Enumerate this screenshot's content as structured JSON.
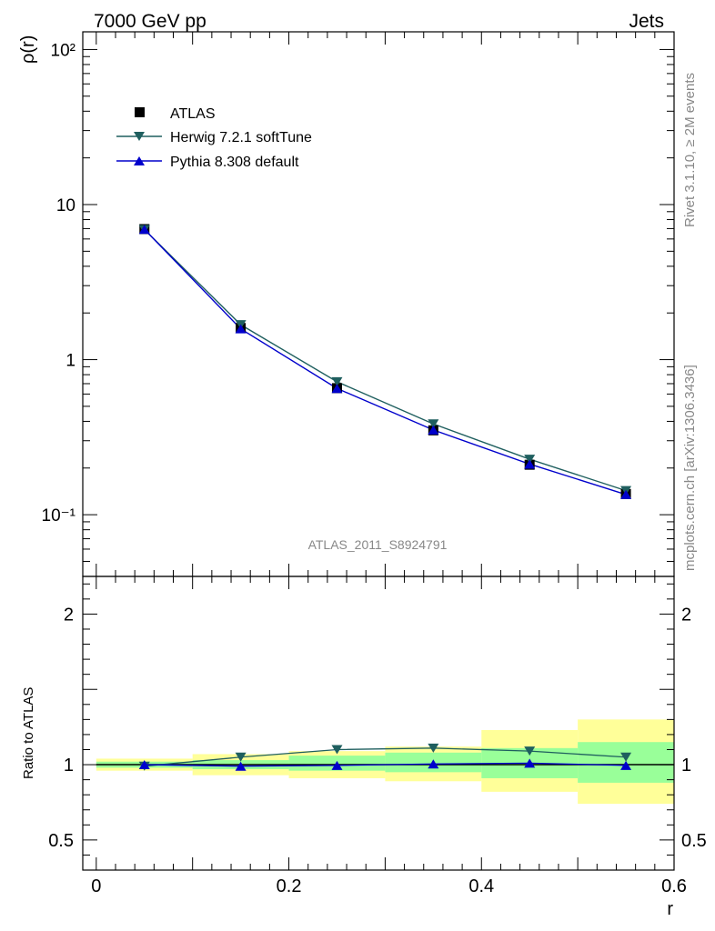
{
  "header": {
    "process": "7000 GeV pp",
    "category": "Jets"
  },
  "side_labels": {
    "rivet": "Rivet 3.1.10, ≥ 2M events",
    "source": "mcplots.cern.ch [arXiv:1306.3436]"
  },
  "analysis_label": "ATLAS_2011_S8924791",
  "colors": {
    "data": "#000000",
    "herwig": "#1f5f5f",
    "pythia": "#0000cc",
    "band_inner": "#99ff99",
    "band_outer": "#ffff99"
  },
  "chart_data": [
    {
      "type": "line",
      "panel": "main",
      "ylabel": "ρ(r)",
      "xlabel": "",
      "yscale": "log",
      "ylim": [
        0.04,
        130
      ],
      "xlim": [
        -0.014,
        0.6
      ],
      "y_tick_labels": [
        "10⁻¹",
        "1",
        "10",
        "10²"
      ],
      "x": [
        0.05,
        0.15,
        0.25,
        0.35,
        0.45,
        0.55
      ],
      "x_bin_edges": [
        0.0,
        0.1,
        0.2,
        0.3,
        0.4,
        0.5,
        0.6
      ],
      "series": [
        {
          "name": "ATLAS",
          "marker": "square",
          "values": [
            6.95,
            1.6,
            0.655,
            0.35,
            0.21,
            0.136
          ]
        },
        {
          "name": "Herwig 7.2.1 softTune",
          "marker": "triangle-down",
          "values": [
            6.9,
            1.68,
            0.72,
            0.385,
            0.228,
            0.143
          ]
        },
        {
          "name": "Pythia 8.308 default",
          "marker": "triangle-up",
          "values": [
            6.92,
            1.58,
            0.652,
            0.352,
            0.212,
            0.135
          ]
        }
      ],
      "legend_position": "top-left"
    },
    {
      "type": "line",
      "panel": "ratio",
      "ylabel": "Ratio to ATLAS",
      "xlabel": "r",
      "ylim": [
        0.3,
        2.25
      ],
      "xlim": [
        -0.014,
        0.6
      ],
      "y_tick_labels": [
        "0.5",
        "1",
        "2"
      ],
      "x_tick_labels": [
        "0",
        "0.2",
        "0.4",
        "0.6"
      ],
      "x": [
        0.05,
        0.15,
        0.25,
        0.35,
        0.45,
        0.55
      ],
      "x_bin_edges": [
        0.0,
        0.1,
        0.2,
        0.3,
        0.4,
        0.5,
        0.6
      ],
      "series": [
        {
          "name": "Herwig 7.2.1 softTune",
          "values": [
            0.99,
            1.05,
            1.1,
            1.11,
            1.09,
            1.05
          ]
        },
        {
          "name": "Pythia 8.308 default",
          "values": [
            1.0,
            0.99,
            0.995,
            1.005,
            1.01,
            0.995
          ]
        }
      ],
      "uncertainty_bands": {
        "inner": [
          [
            0.98,
            1.02
          ],
          [
            0.97,
            1.03
          ],
          [
            0.96,
            1.06
          ],
          [
            0.95,
            1.08
          ],
          [
            0.91,
            1.11
          ],
          [
            0.88,
            1.15
          ]
        ],
        "outer": [
          [
            0.96,
            1.04
          ],
          [
            0.93,
            1.07
          ],
          [
            0.91,
            1.09
          ],
          [
            0.89,
            1.12
          ],
          [
            0.82,
            1.23
          ],
          [
            0.74,
            1.3
          ]
        ]
      }
    }
  ]
}
